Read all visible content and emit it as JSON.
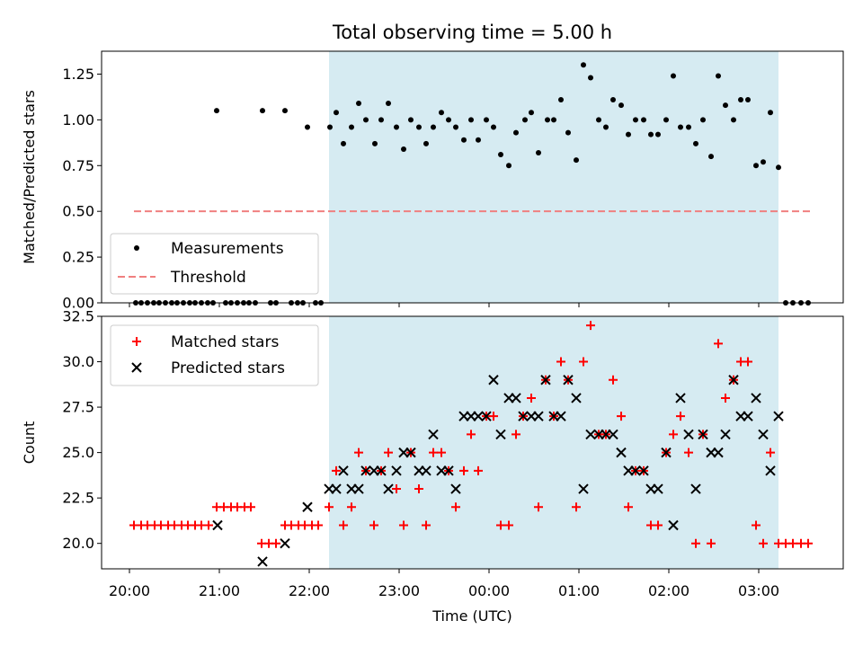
{
  "chart_data": [
    {
      "type": "scatter",
      "title": "Total observing time = 5.00 h",
      "xlabel": "",
      "ylabel": "Matched/Predicted stars",
      "ylim": [
        0,
        1.375
      ],
      "yticks": [
        "0.00",
        "0.25",
        "0.50",
        "0.75",
        "1.00",
        "1.25"
      ],
      "shaded_span_hours": [
        22.22,
        27.22
      ],
      "series": [
        {
          "name": "Measurements",
          "color": "#000000",
          "points": [
            [
              20.07,
              0
            ],
            [
              20.13,
              0
            ],
            [
              20.2,
              0
            ],
            [
              20.27,
              0
            ],
            [
              20.33,
              0
            ],
            [
              20.4,
              0
            ],
            [
              20.47,
              0
            ],
            [
              20.53,
              0
            ],
            [
              20.6,
              0
            ],
            [
              20.67,
              0
            ],
            [
              20.73,
              0
            ],
            [
              20.8,
              0
            ],
            [
              20.87,
              0
            ],
            [
              20.93,
              0
            ],
            [
              20.97,
              1.05
            ],
            [
              21.07,
              0
            ],
            [
              21.13,
              0
            ],
            [
              21.2,
              0
            ],
            [
              21.27,
              0
            ],
            [
              21.33,
              0
            ],
            [
              21.4,
              0
            ],
            [
              21.48,
              1.05
            ],
            [
              21.57,
              0
            ],
            [
              21.63,
              0
            ],
            [
              21.73,
              1.05
            ],
            [
              21.8,
              0
            ],
            [
              21.87,
              0
            ],
            [
              21.93,
              0
            ],
            [
              21.98,
              0.96
            ],
            [
              22.07,
              0
            ],
            [
              22.13,
              0
            ],
            [
              22.23,
              0.96
            ],
            [
              22.3,
              1.04
            ],
            [
              22.38,
              0.87
            ],
            [
              22.47,
              0.96
            ],
            [
              22.55,
              1.09
            ],
            [
              22.63,
              1.0
            ],
            [
              22.73,
              0.87
            ],
            [
              22.8,
              1.0
            ],
            [
              22.88,
              1.09
            ],
            [
              22.97,
              0.96
            ],
            [
              23.05,
              0.84
            ],
            [
              23.13,
              1.0
            ],
            [
              23.22,
              0.96
            ],
            [
              23.3,
              0.87
            ],
            [
              23.38,
              0.96
            ],
            [
              23.47,
              1.04
            ],
            [
              23.55,
              1.0
            ],
            [
              23.63,
              0.96
            ],
            [
              23.72,
              0.89
            ],
            [
              23.8,
              1.0
            ],
            [
              23.88,
              0.89
            ],
            [
              23.97,
              1.0
            ],
            [
              24.05,
              0.96
            ],
            [
              24.13,
              0.81
            ],
            [
              24.22,
              0.75
            ],
            [
              24.3,
              0.93
            ],
            [
              24.4,
              1.0
            ],
            [
              24.47,
              1.04
            ],
            [
              24.55,
              0.82
            ],
            [
              24.65,
              1.0
            ],
            [
              24.72,
              1.0
            ],
            [
              24.8,
              1.11
            ],
            [
              24.88,
              0.93
            ],
            [
              24.97,
              0.78
            ],
            [
              25.05,
              1.3
            ],
            [
              25.13,
              1.23
            ],
            [
              25.22,
              1.0
            ],
            [
              25.3,
              0.96
            ],
            [
              25.38,
              1.11
            ],
            [
              25.47,
              1.08
            ],
            [
              25.55,
              0.92
            ],
            [
              25.63,
              1.0
            ],
            [
              25.72,
              1.0
            ],
            [
              25.8,
              0.92
            ],
            [
              25.88,
              0.92
            ],
            [
              25.97,
              1.0
            ],
            [
              26.05,
              1.24
            ],
            [
              26.13,
              0.96
            ],
            [
              26.22,
              0.96
            ],
            [
              26.3,
              0.87
            ],
            [
              26.38,
              1.0
            ],
            [
              26.47,
              0.8
            ],
            [
              26.55,
              1.24
            ],
            [
              26.63,
              1.08
            ],
            [
              26.72,
              1.0
            ],
            [
              26.8,
              1.11
            ],
            [
              26.88,
              1.11
            ],
            [
              26.97,
              0.75
            ],
            [
              27.05,
              0.77
            ],
            [
              27.13,
              1.04
            ],
            [
              27.22,
              0.74
            ],
            [
              27.3,
              0
            ],
            [
              27.38,
              0
            ],
            [
              27.47,
              0
            ],
            [
              27.55,
              0
            ]
          ]
        },
        {
          "name": "Threshold",
          "color": "#f08080",
          "style": "dashed",
          "points": [
            [
              20.05,
              0.5
            ],
            [
              27.57,
              0.5
            ]
          ]
        }
      ],
      "legend": "lower-left"
    },
    {
      "type": "scatter",
      "title": "",
      "xlabel": "Time (UTC)",
      "ylabel": "Count",
      "ylim": [
        18.6,
        32.5
      ],
      "yticks": [
        "20.0",
        "22.5",
        "25.0",
        "27.5",
        "30.0",
        "32.5"
      ],
      "xticks_hours": [
        20,
        21,
        22,
        23,
        24,
        25,
        26,
        27
      ],
      "xtick_labels": [
        "20:00",
        "21:00",
        "22:00",
        "23:00",
        "00:00",
        "01:00",
        "02:00",
        "03:00"
      ],
      "shaded_span_hours": [
        22.22,
        27.22
      ],
      "series": [
        {
          "name": "Matched stars",
          "color": "#ff0000",
          "marker": "plus",
          "points": [
            [
              20.05,
              21
            ],
            [
              20.13,
              21
            ],
            [
              20.2,
              21
            ],
            [
              20.28,
              21
            ],
            [
              20.35,
              21
            ],
            [
              20.43,
              21
            ],
            [
              20.5,
              21
            ],
            [
              20.58,
              21
            ],
            [
              20.65,
              21
            ],
            [
              20.73,
              21
            ],
            [
              20.8,
              21
            ],
            [
              20.88,
              21
            ],
            [
              20.97,
              22
            ],
            [
              21.05,
              22
            ],
            [
              21.13,
              22
            ],
            [
              21.2,
              22
            ],
            [
              21.28,
              22
            ],
            [
              21.35,
              22
            ],
            [
              21.47,
              20
            ],
            [
              21.55,
              20
            ],
            [
              21.63,
              20
            ],
            [
              21.73,
              21
            ],
            [
              21.8,
              21
            ],
            [
              21.88,
              21
            ],
            [
              21.95,
              21
            ],
            [
              22.03,
              21
            ],
            [
              22.1,
              21
            ],
            [
              22.22,
              22
            ],
            [
              22.3,
              24
            ],
            [
              22.38,
              21
            ],
            [
              22.47,
              22
            ],
            [
              22.55,
              25
            ],
            [
              22.63,
              24
            ],
            [
              22.72,
              21
            ],
            [
              22.8,
              24
            ],
            [
              22.88,
              25
            ],
            [
              22.97,
              23
            ],
            [
              23.05,
              21
            ],
            [
              23.13,
              25
            ],
            [
              23.22,
              23
            ],
            [
              23.3,
              21
            ],
            [
              23.38,
              25
            ],
            [
              23.47,
              25
            ],
            [
              23.55,
              24
            ],
            [
              23.63,
              22
            ],
            [
              23.72,
              24
            ],
            [
              23.8,
              26
            ],
            [
              23.88,
              24
            ],
            [
              23.97,
              27
            ],
            [
              24.05,
              27
            ],
            [
              24.13,
              21
            ],
            [
              24.22,
              21
            ],
            [
              24.3,
              26
            ],
            [
              24.38,
              27
            ],
            [
              24.47,
              28
            ],
            [
              24.55,
              22
            ],
            [
              24.63,
              29
            ],
            [
              24.72,
              27
            ],
            [
              24.8,
              30
            ],
            [
              24.88,
              29
            ],
            [
              24.97,
              22
            ],
            [
              25.05,
              30
            ],
            [
              25.13,
              32
            ],
            [
              25.22,
              26
            ],
            [
              25.3,
              26
            ],
            [
              25.38,
              29
            ],
            [
              25.47,
              27
            ],
            [
              25.55,
              22
            ],
            [
              25.63,
              24
            ],
            [
              25.72,
              24
            ],
            [
              25.8,
              21
            ],
            [
              25.88,
              21
            ],
            [
              25.97,
              25
            ],
            [
              26.05,
              26
            ],
            [
              26.13,
              27
            ],
            [
              26.22,
              25
            ],
            [
              26.3,
              20
            ],
            [
              26.38,
              26
            ],
            [
              26.47,
              20
            ],
            [
              26.55,
              31
            ],
            [
              26.63,
              28
            ],
            [
              26.72,
              29
            ],
            [
              26.8,
              30
            ],
            [
              26.88,
              30
            ],
            [
              26.97,
              21
            ],
            [
              27.05,
              20
            ],
            [
              27.13,
              25
            ],
            [
              27.22,
              20
            ],
            [
              27.3,
              20
            ],
            [
              27.38,
              20
            ],
            [
              27.47,
              20
            ],
            [
              27.55,
              20
            ]
          ]
        },
        {
          "name": "Predicted stars",
          "color": "#000000",
          "marker": "x",
          "points": [
            [
              20.98,
              21
            ],
            [
              21.48,
              19
            ],
            [
              21.73,
              20
            ],
            [
              21.98,
              22
            ],
            [
              22.22,
              23
            ],
            [
              22.3,
              23
            ],
            [
              22.38,
              24
            ],
            [
              22.47,
              23
            ],
            [
              22.55,
              23
            ],
            [
              22.63,
              24
            ],
            [
              22.72,
              24
            ],
            [
              22.8,
              24
            ],
            [
              22.88,
              23
            ],
            [
              22.97,
              24
            ],
            [
              23.05,
              25
            ],
            [
              23.13,
              25
            ],
            [
              23.22,
              24
            ],
            [
              23.3,
              24
            ],
            [
              23.38,
              26
            ],
            [
              23.47,
              24
            ],
            [
              23.55,
              24
            ],
            [
              23.63,
              23
            ],
            [
              23.72,
              27
            ],
            [
              23.8,
              27
            ],
            [
              23.88,
              27
            ],
            [
              23.97,
              27
            ],
            [
              24.05,
              29
            ],
            [
              24.13,
              26
            ],
            [
              24.22,
              28
            ],
            [
              24.3,
              28
            ],
            [
              24.38,
              27
            ],
            [
              24.47,
              27
            ],
            [
              24.55,
              27
            ],
            [
              24.63,
              29
            ],
            [
              24.72,
              27
            ],
            [
              24.8,
              27
            ],
            [
              24.88,
              29
            ],
            [
              24.97,
              28
            ],
            [
              25.05,
              23
            ],
            [
              25.13,
              26
            ],
            [
              25.22,
              26
            ],
            [
              25.3,
              26
            ],
            [
              25.38,
              26
            ],
            [
              25.47,
              25
            ],
            [
              25.55,
              24
            ],
            [
              25.63,
              24
            ],
            [
              25.72,
              24
            ],
            [
              25.8,
              23
            ],
            [
              25.88,
              23
            ],
            [
              25.97,
              25
            ],
            [
              26.05,
              21
            ],
            [
              26.13,
              28
            ],
            [
              26.22,
              26
            ],
            [
              26.3,
              23
            ],
            [
              26.38,
              26
            ],
            [
              26.47,
              25
            ],
            [
              26.55,
              25
            ],
            [
              26.63,
              26
            ],
            [
              26.72,
              29
            ],
            [
              26.8,
              27
            ],
            [
              26.88,
              27
            ],
            [
              26.97,
              28
            ],
            [
              27.05,
              26
            ],
            [
              27.13,
              24
            ],
            [
              27.22,
              27
            ]
          ]
        }
      ],
      "legend": "upper-left"
    }
  ],
  "colors": {
    "shade": "#add8e6",
    "axes": "#000000"
  }
}
